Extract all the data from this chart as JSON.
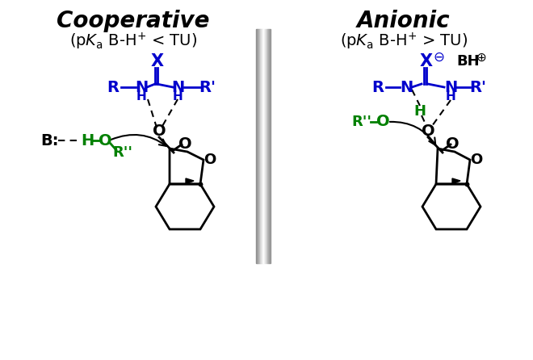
{
  "title_left": "Cooperative",
  "title_right": "Anionic",
  "subtitle_left": "(p$\\mathit{K}_{\\mathrm{a}}$ B-H$^{+}$ < TU)",
  "subtitle_right": "(p$\\mathit{K}_{\\mathrm{a}}$ B-H$^{+}$ > TU)",
  "bg_color": "#ffffff",
  "blue_color": "#0000cc",
  "green_color": "#008000",
  "black_color": "#000000",
  "gray_divider": "#b0b0b0",
  "fig_width": 6.6,
  "fig_height": 4.46,
  "dpi": 100
}
